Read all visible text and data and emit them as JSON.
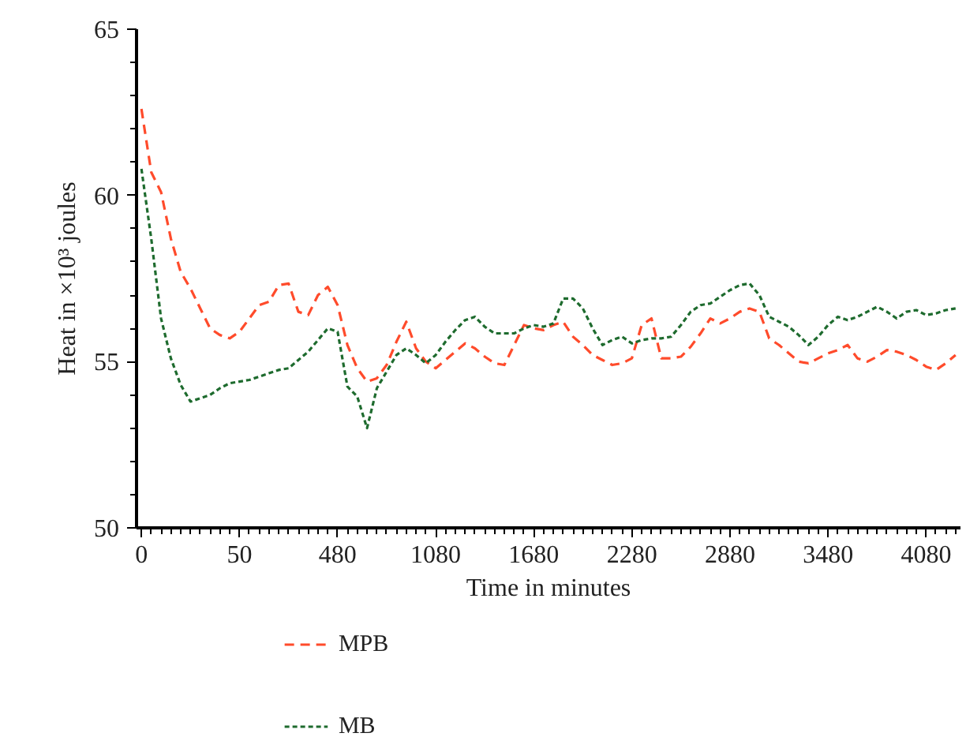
{
  "chart_data": {
    "type": "line",
    "xlabel": "Time in minutes",
    "ylabel": "Heat in ×10³ joules",
    "categories": [
      "0",
      null,
      null,
      null,
      null,
      null,
      null,
      null,
      null,
      null,
      "50",
      null,
      null,
      null,
      null,
      null,
      null,
      null,
      null,
      null,
      "480",
      null,
      null,
      null,
      null,
      null,
      null,
      null,
      null,
      null,
      "1080",
      null,
      null,
      null,
      null,
      null,
      null,
      null,
      null,
      null,
      "1680",
      null,
      null,
      null,
      null,
      null,
      null,
      null,
      null,
      null,
      "2280",
      null,
      null,
      null,
      null,
      null,
      null,
      null,
      null,
      null,
      "2880",
      null,
      null,
      null,
      null,
      null,
      null,
      null,
      null,
      null,
      "3480",
      null,
      null,
      null,
      null,
      null,
      null,
      null,
      null,
      null,
      "4080",
      null,
      null,
      null
    ],
    "ylim": [
      50,
      65
    ],
    "yticks": [
      50,
      55,
      60,
      65
    ],
    "grid": false,
    "legend": "bottom",
    "marker": "none",
    "series": [
      {
        "name": "MPB",
        "color": "#ff4b2b",
        "line_style": "dashed",
        "values": [
          62.6,
          60.7,
          60.1,
          58.7,
          57.7,
          57.2,
          56.6,
          56.0,
          55.8,
          55.7,
          55.9,
          56.3,
          56.7,
          56.8,
          57.3,
          57.35,
          56.5,
          56.4,
          57.0,
          57.25,
          56.7,
          55.5,
          54.8,
          54.4,
          54.5,
          54.9,
          55.6,
          56.2,
          55.4,
          55.0,
          54.8,
          55.05,
          55.3,
          55.55,
          55.4,
          55.15,
          54.95,
          54.9,
          55.5,
          56.1,
          56.0,
          55.95,
          56.1,
          56.2,
          55.75,
          55.5,
          55.2,
          55.05,
          54.9,
          54.95,
          55.1,
          56.1,
          56.3,
          55.1,
          55.1,
          55.15,
          55.45,
          55.85,
          56.3,
          56.15,
          56.3,
          56.5,
          56.6,
          56.5,
          55.7,
          55.5,
          55.25,
          55.0,
          54.95,
          55.1,
          55.25,
          55.35,
          55.5,
          55.1,
          55.0,
          55.15,
          55.35,
          55.3,
          55.2,
          55.05,
          54.85,
          54.75,
          54.95,
          55.2
        ]
      },
      {
        "name": "MB",
        "color": "#1e6b2e",
        "line_style": "dotted",
        "values": [
          60.8,
          58.7,
          56.3,
          55.1,
          54.3,
          53.8,
          53.9,
          54.0,
          54.2,
          54.35,
          54.4,
          54.45,
          54.55,
          54.65,
          54.75,
          54.8,
          55.05,
          55.3,
          55.65,
          56.0,
          55.9,
          54.25,
          53.95,
          53.0,
          54.2,
          54.7,
          55.2,
          55.4,
          55.2,
          54.95,
          55.2,
          55.6,
          55.95,
          56.25,
          56.35,
          56.05,
          55.85,
          55.85,
          55.85,
          56.0,
          56.1,
          56.05,
          56.15,
          56.9,
          56.9,
          56.6,
          56.0,
          55.5,
          55.65,
          55.75,
          55.55,
          55.65,
          55.7,
          55.7,
          55.75,
          56.1,
          56.5,
          56.7,
          56.75,
          56.95,
          57.15,
          57.3,
          57.35,
          57.0,
          56.35,
          56.2,
          56.05,
          55.8,
          55.5,
          55.75,
          56.1,
          56.35,
          56.25,
          56.35,
          56.5,
          56.65,
          56.5,
          56.3,
          56.5,
          56.55,
          56.4,
          56.45,
          56.55,
          56.6
        ]
      }
    ]
  }
}
